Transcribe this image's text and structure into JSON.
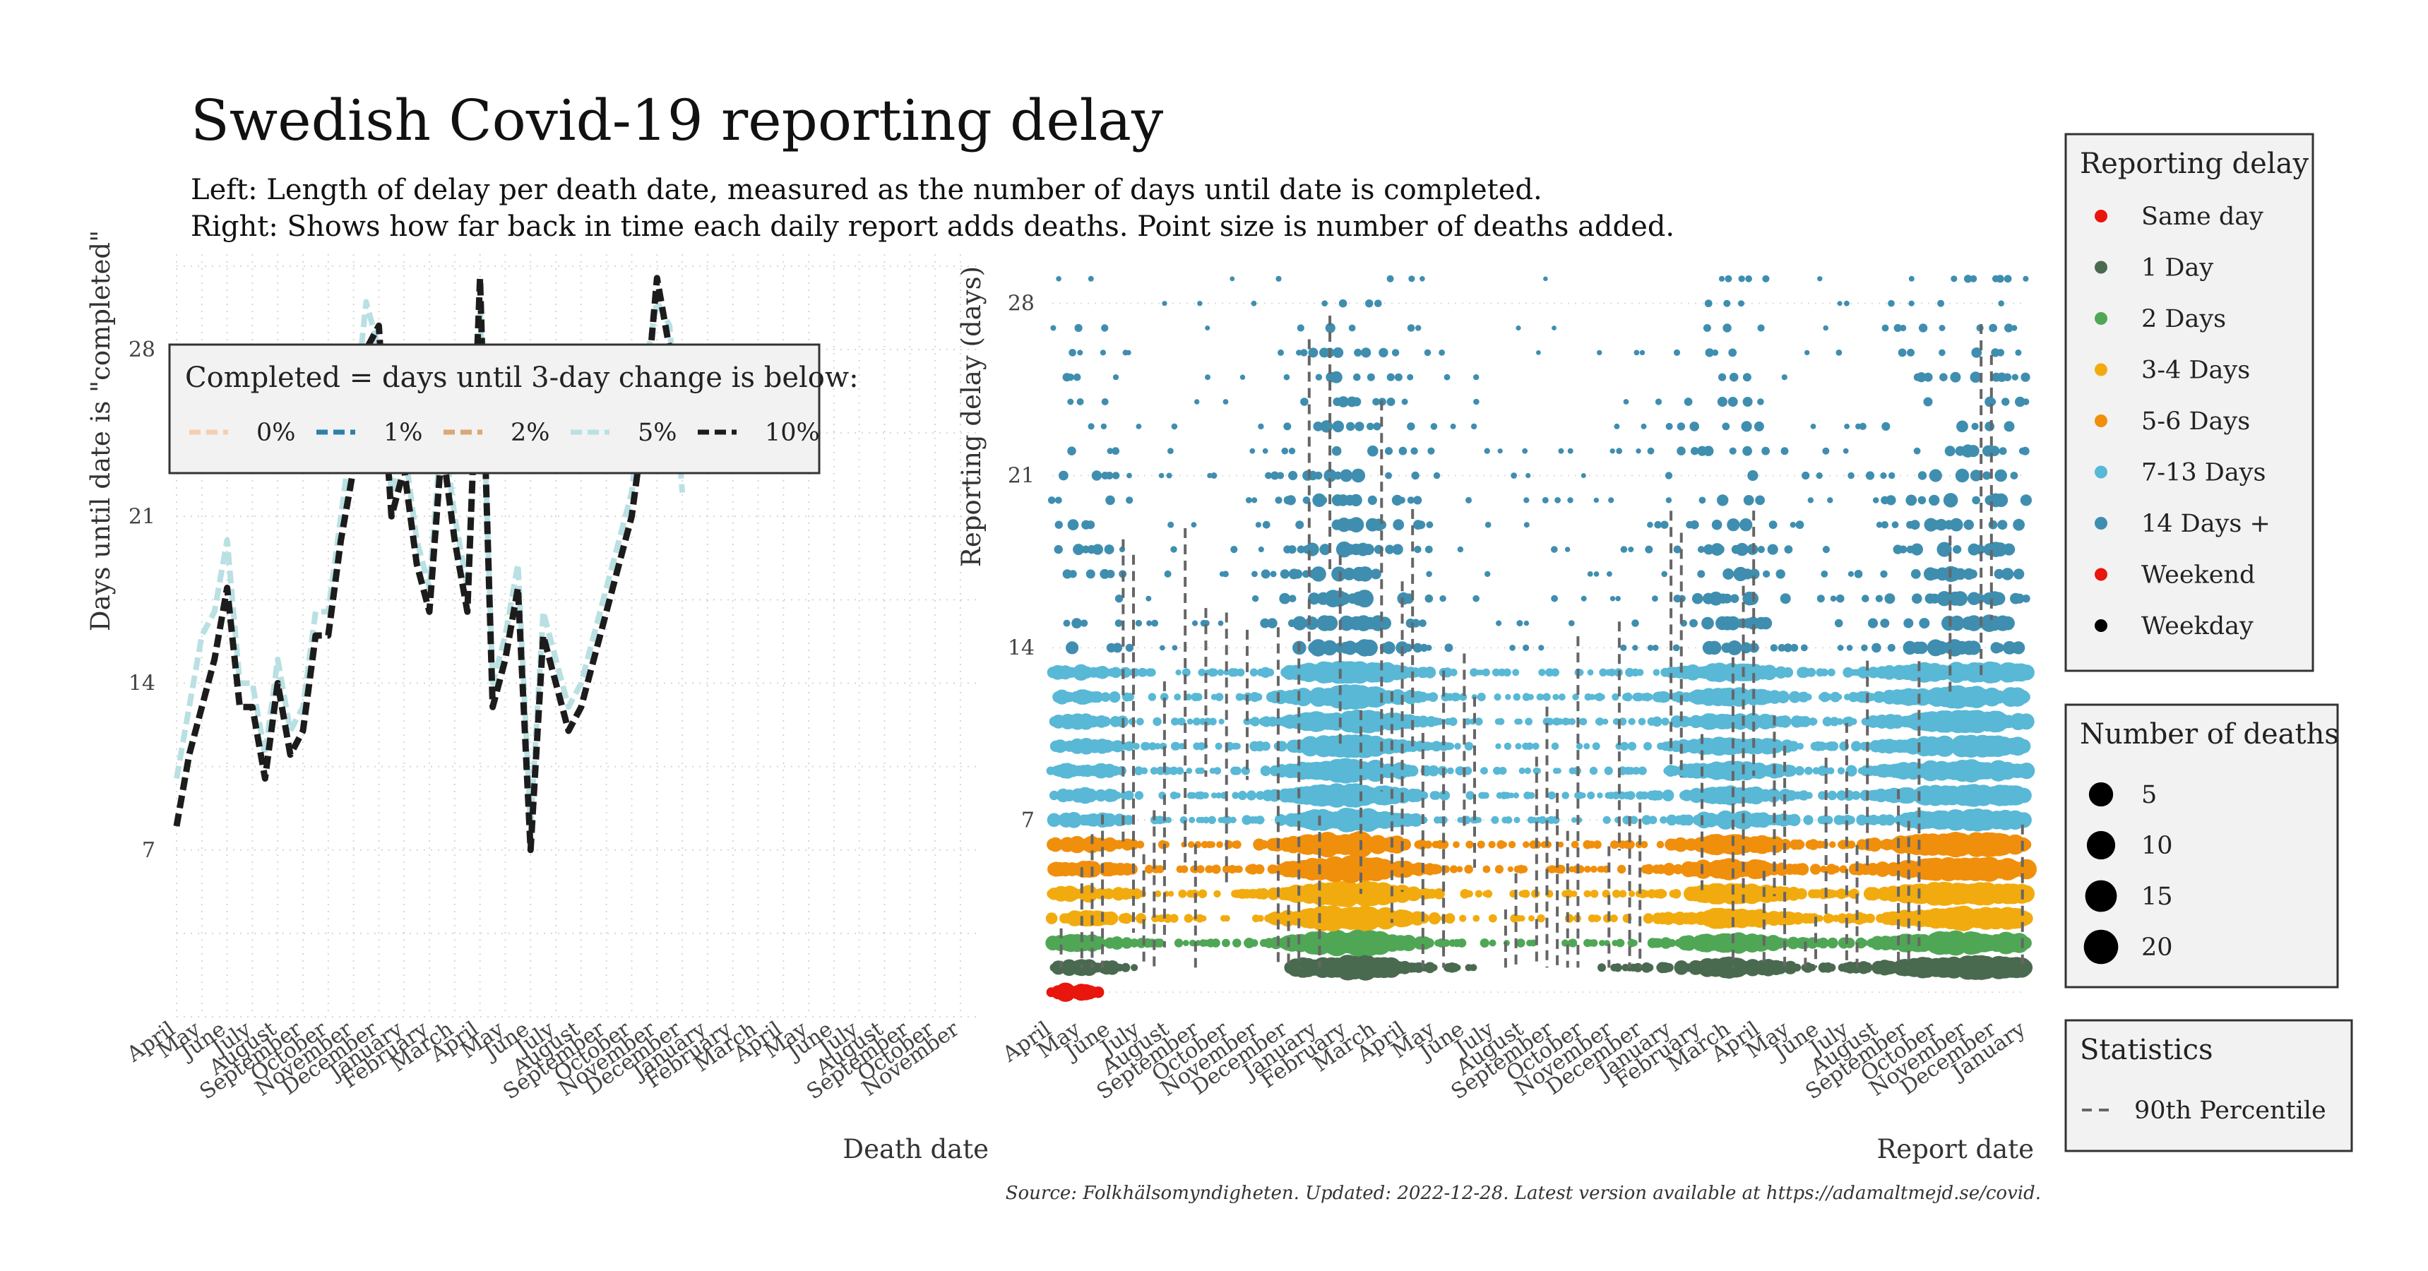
{
  "title": "Swedish Covid-19 reporting delay",
  "subtitle": [
    "Left: Length of delay per death date, measured as the number of days until date is completed.",
    "Right: Shows how far back in time each daily report adds deaths. Point size is number of deaths added."
  ],
  "source": "Source: Folkhälsomyndigheten. Updated: 2022-12-28. Latest version available at https://adamaltmejd.se/covid.",
  "chart_data": [
    {
      "type": "line",
      "xlabel": "Death date",
      "ylabel": "Days until date is \"completed\"",
      "yticks": [
        7,
        14,
        21,
        28
      ],
      "ylim": [
        0,
        32
      ],
      "x_tick_labels": [
        "April",
        "May",
        "June",
        "July",
        "August",
        "September",
        "October",
        "November",
        "December",
        "January",
        "February",
        "March",
        "April",
        "May",
        "June",
        "July",
        "August",
        "September",
        "October",
        "November",
        "December",
        "January",
        "February",
        "March",
        "April",
        "May",
        "June",
        "July",
        "August",
        "September",
        "October",
        "November"
      ],
      "legend": {
        "title": "Completed = days until 3-day change is below:",
        "position": "top-left (inside plot)",
        "items": [
          {
            "label": "0%",
            "color": "#f3cfb2"
          },
          {
            "label": "1%",
            "color": "#2f7fa8"
          },
          {
            "label": "2%",
            "color": "#d9a874"
          },
          {
            "label": "5%",
            "color": "#b9e0e3"
          },
          {
            "label": "10%",
            "color": "#1c1c1c"
          }
        ]
      },
      "series": [
        {
          "name": "10%",
          "color": "#1c1c1c",
          "x_month_index": [
            0,
            0.5,
            1,
            1.5,
            2,
            2.5,
            3,
            3.5,
            4,
            4.5,
            5,
            5.5,
            6,
            6.5,
            7,
            7.5,
            8,
            8.5,
            9,
            9.5,
            10,
            10.5,
            11,
            11.5,
            12,
            12.5,
            13,
            13.5,
            14,
            14.5,
            15,
            15.5,
            16,
            16.5,
            17,
            17.5,
            18,
            18.5,
            19,
            19.5,
            20,
            20.5,
            21,
            21.5,
            22,
            22.5,
            23,
            23.5,
            24
          ],
          "values": [
            8,
            11,
            13,
            15,
            18,
            13,
            13,
            10,
            14,
            11,
            12,
            16,
            16,
            20,
            23,
            28,
            29,
            21,
            23,
            19,
            17,
            24,
            20,
            17,
            31,
            13,
            15,
            18,
            7,
            16,
            14,
            12,
            13,
            15,
            17,
            19,
            21,
            25,
            31,
            28,
            null,
            null,
            null,
            null,
            null,
            null,
            null,
            null,
            null
          ]
        },
        {
          "name": "5%",
          "color": "#b9e0e3",
          "x_month_index": [
            0,
            0.5,
            1,
            1.5,
            2,
            2.5,
            3,
            3.5,
            4,
            4.5,
            5,
            5.5,
            6,
            6.5,
            7,
            7.5,
            8,
            8.5,
            9,
            9.5,
            10,
            10.5,
            11,
            11.5,
            12,
            12.5,
            13,
            13.5,
            14,
            14.5,
            15,
            15.5,
            16,
            16.5,
            17,
            17.5,
            18,
            18.5,
            19,
            19.5,
            20
          ],
          "values": [
            10,
            13,
            16,
            17,
            20,
            14,
            14,
            11,
            15,
            12,
            13,
            17,
            17,
            21,
            25,
            30,
            28,
            22,
            24,
            20,
            18,
            25,
            21,
            18,
            30,
            14,
            16,
            19,
            8,
            17,
            15,
            13,
            14,
            16,
            18,
            20,
            22,
            27,
            30,
            29,
            22
          ]
        }
      ]
    },
    {
      "type": "scatter",
      "xlabel": "Report date",
      "ylabel": "Reporting delay (days)",
      "yticks": [
        7,
        14,
        21,
        28
      ],
      "ylim": [
        -1,
        30
      ],
      "x_tick_labels": [
        "April",
        "May",
        "June",
        "July",
        "August",
        "September",
        "October",
        "November",
        "December",
        "January",
        "February",
        "March",
        "April",
        "May",
        "June",
        "July",
        "August",
        "September",
        "October",
        "November",
        "December",
        "January",
        "February",
        "March",
        "April",
        "May",
        "June",
        "July",
        "August",
        "September",
        "October",
        "November",
        "December",
        "January"
      ],
      "color_legend": {
        "title": "Reporting delay",
        "items": [
          {
            "label": "Same day",
            "color": "#e8160c"
          },
          {
            "label": "1 Day",
            "color": "#4a6a50"
          },
          {
            "label": "2 Days",
            "color": "#4fa756"
          },
          {
            "label": "3-4 Days",
            "color": "#f2ab0e"
          },
          {
            "label": "5-6 Days",
            "color": "#f08f0c"
          },
          {
            "label": "7-13 Days",
            "color": "#58b8d6"
          },
          {
            "label": "14 Days +",
            "color": "#3f8eb0"
          },
          {
            "label": "Weekend",
            "color": "#e8160c"
          },
          {
            "label": "Weekday",
            "color": "#000000"
          }
        ]
      },
      "size_legend": {
        "title": "Number of deaths",
        "values": [
          5,
          10,
          15,
          20
        ]
      },
      "stat_legend": {
        "title": "Statistics",
        "items": [
          {
            "label": "90th Percentile",
            "style": "dashed",
            "color": "#666666"
          }
        ]
      },
      "bands": [
        {
          "category": "Same day",
          "delay": 0,
          "active_months": [
            [
              0,
              2
            ]
          ]
        },
        {
          "category": "1 Day",
          "delay": 1,
          "active_months": [
            [
              0,
              3
            ],
            [
              8,
              14.5
            ],
            [
              18,
              33
            ]
          ]
        },
        {
          "category": "2 Days",
          "delay": 2,
          "active_months": [
            [
              0,
              34
            ]
          ]
        },
        {
          "category": "3-4 Days",
          "delay": [
            3,
            4
          ],
          "active_months": [
            [
              0,
              34
            ]
          ]
        },
        {
          "category": "5-6 Days",
          "delay": [
            5,
            6
          ],
          "active_months": [
            [
              0,
              34
            ]
          ]
        },
        {
          "category": "7-13 Days",
          "delay": [
            7,
            13
          ],
          "active_months": [
            [
              0,
              34
            ]
          ]
        },
        {
          "category": "14 Days +",
          "delay": [
            14,
            29
          ],
          "active_months": [
            [
              0,
              34
            ]
          ]
        }
      ]
    }
  ]
}
